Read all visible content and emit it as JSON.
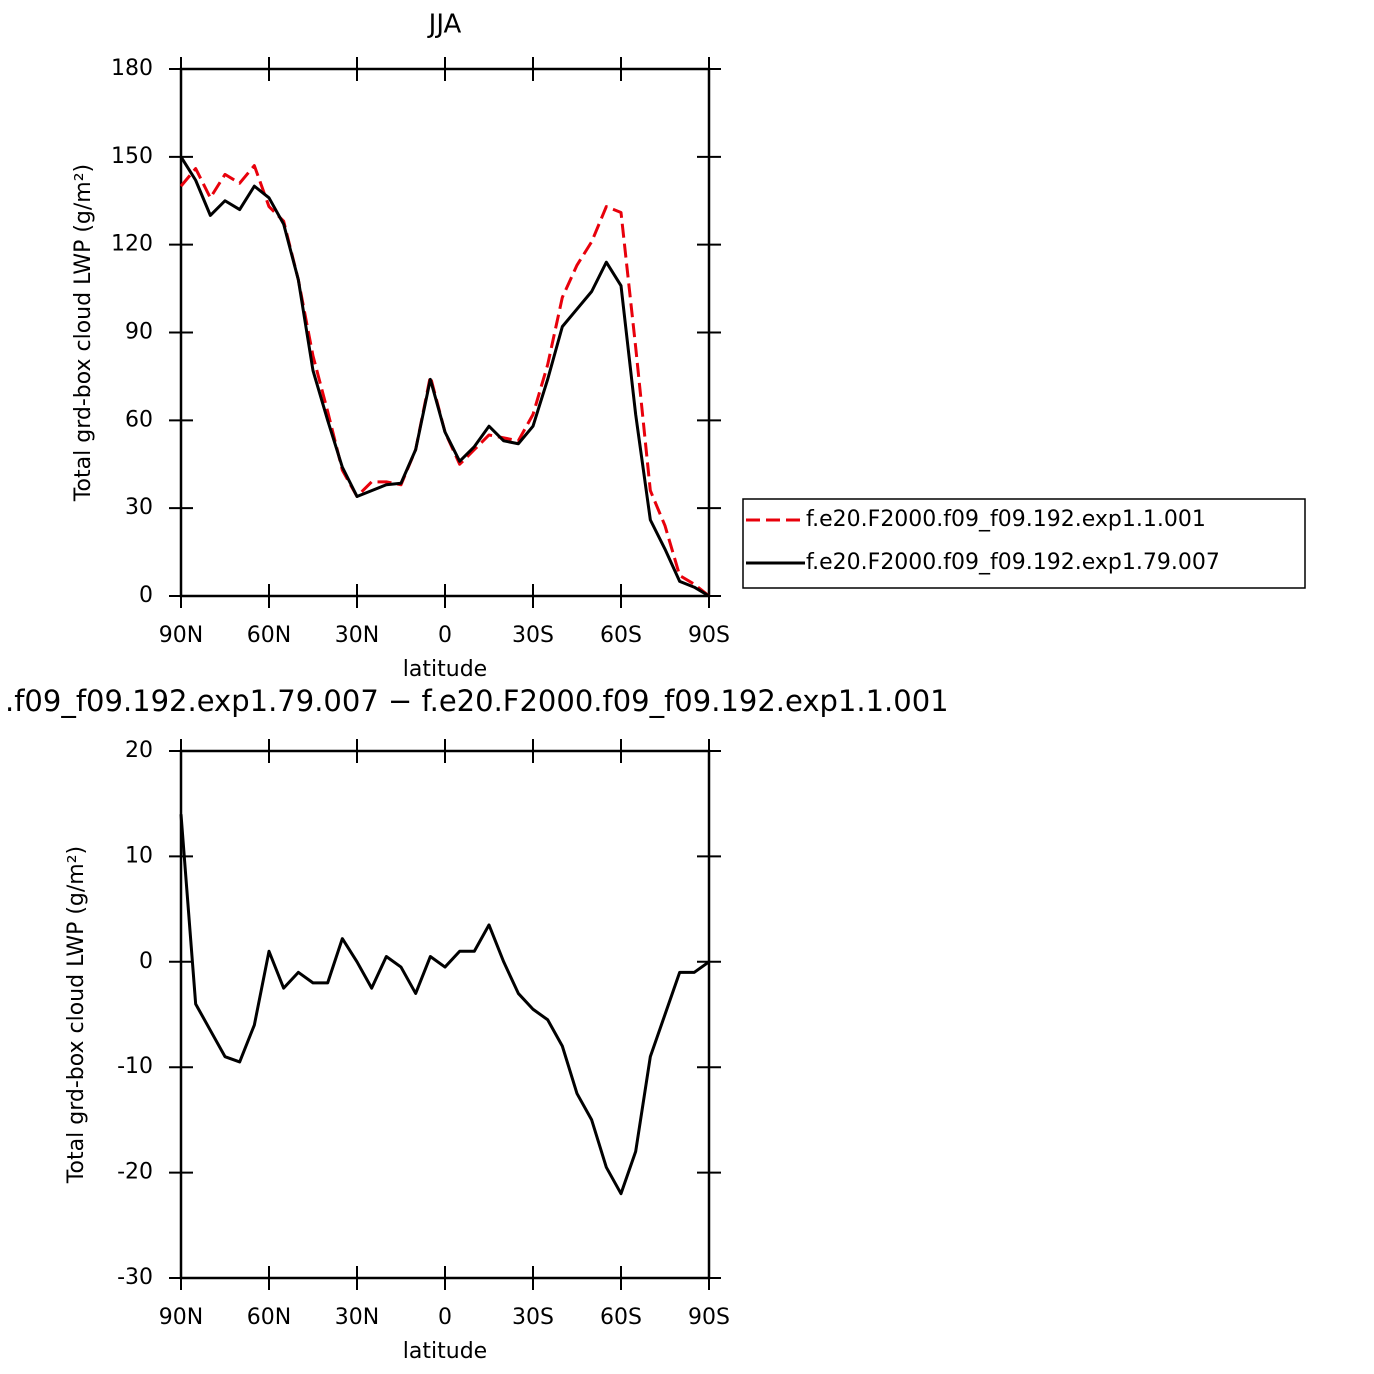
{
  "chart_data": [
    {
      "type": "line",
      "title": "JJA",
      "xlabel": "latitude",
      "ylabel": "Total grd-box cloud LWP (g/m²)",
      "x": [
        90,
        85,
        80,
        75,
        70,
        65,
        60,
        55,
        50,
        45,
        40,
        35,
        30,
        25,
        20,
        15,
        10,
        5,
        0,
        -5,
        -10,
        -15,
        -20,
        -25,
        -30,
        -35,
        -40,
        -45,
        -50,
        -55,
        -60,
        -65,
        -70,
        -75,
        -80,
        -85,
        -90
      ],
      "series": [
        {
          "name": "f.e20.F2000.f09_f09.192.exp1.1.001",
          "color": "#e8000b",
          "style": "dashed",
          "values": [
            140,
            146,
            136,
            144,
            141,
            147,
            133,
            128,
            108,
            82,
            63,
            43,
            34,
            39,
            39,
            38,
            50,
            75,
            56,
            45,
            50,
            55,
            54,
            53,
            62,
            79,
            102,
            113,
            121,
            133,
            131,
            85,
            36,
            24,
            7,
            4,
            0
          ]
        },
        {
          "name": "f.e20.F2000.f09_f09.192.exp1.79.007",
          "color": "#000000",
          "style": "solid",
          "values": [
            150,
            142,
            130,
            135,
            132,
            140,
            136,
            127,
            108,
            77,
            60,
            44,
            34,
            36,
            38,
            38.5,
            50,
            74,
            56,
            46,
            51,
            58,
            53,
            52,
            58,
            74,
            92,
            98,
            104,
            114,
            106,
            62,
            26,
            16,
            5,
            3,
            0
          ]
        }
      ],
      "xlim": [
        90,
        -90
      ],
      "xticks": [
        {
          "value": 90,
          "label": "90N"
        },
        {
          "value": 60,
          "label": "60N"
        },
        {
          "value": 30,
          "label": "30N"
        },
        0,
        {
          "value": -30,
          "label": "30S"
        },
        {
          "value": -60,
          "label": "60S"
        },
        {
          "value": -90,
          "label": "90S"
        }
      ],
      "ylim": [
        0,
        180
      ],
      "yticks": [
        0,
        30,
        60,
        90,
        120,
        150,
        180
      ],
      "legend": "right"
    },
    {
      "type": "line",
      "title": ".f09_f09.192.exp1.79.007 − f.e20.F2000.f09_f09.192.exp1.1.001",
      "xlabel": "latitude",
      "ylabel": "Total grd-box cloud LWP (g/m²)",
      "x": [
        90,
        85,
        80,
        75,
        70,
        65,
        60,
        55,
        50,
        45,
        40,
        35,
        30,
        25,
        20,
        15,
        10,
        5,
        0,
        -5,
        -10,
        -15,
        -20,
        -25,
        -30,
        -35,
        -40,
        -45,
        -50,
        -55,
        -60,
        -65,
        -70,
        -75,
        -80,
        -85,
        -90
      ],
      "series": [
        {
          "color": "#000000",
          "style": "solid",
          "values": [
            14,
            -4,
            -6.5,
            -9,
            -9.5,
            -6,
            1,
            -2.5,
            -1,
            -2,
            -2,
            2.2,
            0,
            -2.5,
            0.5,
            -0.5,
            -3,
            0.5,
            -0.5,
            1,
            1,
            3.5,
            0,
            -3,
            -4.5,
            -5.5,
            -8,
            -12.5,
            -15,
            -19.5,
            -22,
            -18,
            -9,
            -5,
            -1,
            -1,
            0
          ]
        }
      ],
      "xlim": [
        90,
        -90
      ],
      "xticks": [
        {
          "value": 90,
          "label": "90N"
        },
        {
          "value": 60,
          "label": "60N"
        },
        {
          "value": 30,
          "label": "30N"
        },
        0,
        {
          "value": -30,
          "label": "30S"
        },
        {
          "value": -60,
          "label": "60S"
        },
        {
          "value": -90,
          "label": "90S"
        }
      ],
      "ylim": [
        -30,
        20
      ],
      "yticks": [
        -30,
        -20,
        -10,
        0,
        10,
        20
      ]
    }
  ]
}
